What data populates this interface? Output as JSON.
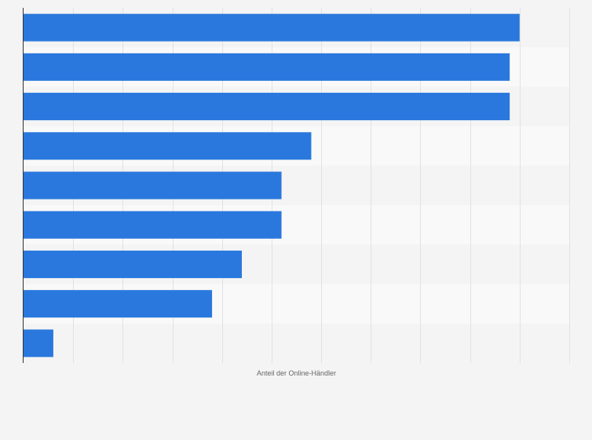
{
  "chart_data": {
    "type": "bar",
    "orientation": "horizontal",
    "title": "",
    "xlabel": "Anteil der Online-Händler",
    "ylabel": "",
    "xlim": [
      0,
      110
    ],
    "grid": true,
    "bar_color": "#2a78dd",
    "row_colors": [
      "#f4f4f4",
      "#f9f9f9"
    ],
    "grid_color": "#e2e2e2",
    "axis_color": "#333333",
    "categories": [
      "",
      "",
      "",
      "",
      "",
      "",
      "",
      "",
      ""
    ],
    "values": [
      100,
      98,
      98,
      58,
      52,
      52,
      44,
      38,
      6
    ]
  }
}
